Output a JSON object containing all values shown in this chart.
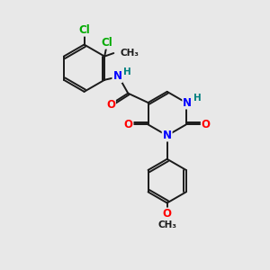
{
  "background_color": "#e8e8e8",
  "bond_color": "#1a1a1a",
  "atom_colors": {
    "N": "#0000ff",
    "O": "#ff0000",
    "Cl": "#00aa00",
    "H": "#008080",
    "C": "#1a1a1a"
  },
  "lw": 1.4,
  "off": 0.055
}
